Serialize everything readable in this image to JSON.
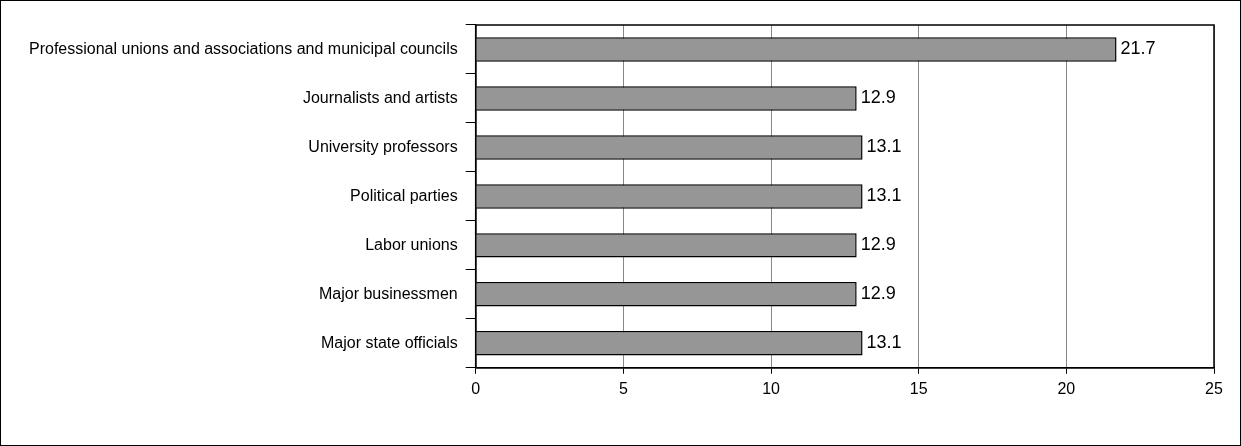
{
  "chart_data": {
    "type": "bar",
    "orientation": "horizontal",
    "categories": [
      "Professional unions and associations and municipal councils",
      "Journalists and artists",
      "University professors",
      "Political parties",
      "Labor unions",
      "Major businessmen",
      "Major state officials"
    ],
    "values": [
      21.7,
      12.9,
      13.1,
      13.1,
      12.9,
      12.9,
      13.1
    ],
    "color": "#969696",
    "xlim": [
      0,
      25
    ],
    "xticks": [
      0,
      5,
      10,
      15,
      20,
      25
    ],
    "grid": "x",
    "legend": false,
    "data_labels": true
  }
}
